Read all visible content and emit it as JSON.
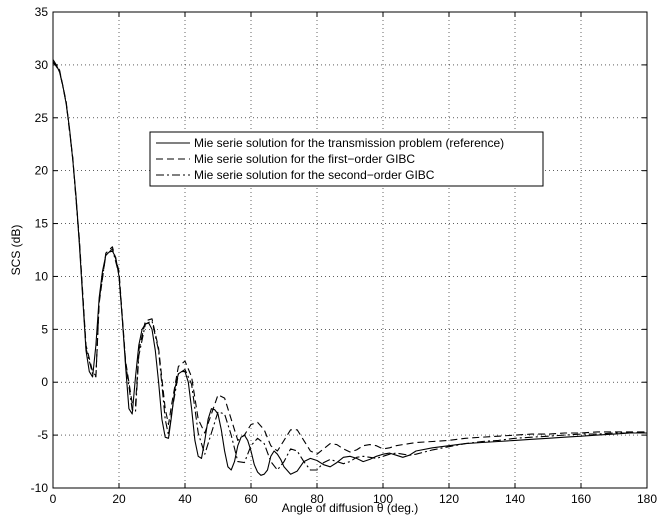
{
  "chart_data": {
    "type": "line",
    "title": "",
    "xlabel": "Angle of diffusion θ (deg.)",
    "ylabel": "SCS (dB)",
    "xlim": [
      0,
      180
    ],
    "ylim": [
      -10,
      35
    ],
    "xticks": [
      0,
      20,
      40,
      60,
      80,
      100,
      120,
      140,
      160,
      180
    ],
    "yticks": [
      -10,
      -5,
      0,
      5,
      10,
      15,
      20,
      25,
      30,
      35
    ],
    "grid": true,
    "legend_position": "center",
    "series": [
      {
        "name": "Mie serie solution for the transmission problem (reference)",
        "line_style": "solid",
        "color": "#000000",
        "x": [
          0,
          1,
          2,
          3,
          4,
          5,
          6,
          7,
          8,
          9,
          10,
          11,
          12,
          13,
          14,
          15,
          16,
          17,
          18,
          19,
          20,
          21,
          22,
          23,
          24,
          25,
          26,
          27,
          28,
          29,
          30,
          31,
          32,
          33,
          34,
          35,
          36,
          37,
          38,
          39,
          40,
          41,
          42,
          43,
          44,
          45,
          46,
          47,
          48,
          49,
          50,
          51,
          52,
          53,
          54,
          55,
          56,
          57,
          58,
          59,
          60,
          61,
          62,
          63,
          64,
          65,
          66,
          67,
          68,
          69,
          70,
          72,
          74,
          76,
          78,
          80,
          82,
          84,
          86,
          88,
          90,
          92,
          94,
          96,
          98,
          100,
          102,
          104,
          106,
          108,
          110,
          115,
          120,
          125,
          130,
          135,
          140,
          145,
          150,
          155,
          160,
          165,
          170,
          175,
          180
        ],
        "y": [
          30.2,
          30.0,
          29.3,
          28.0,
          26.3,
          24.0,
          21.0,
          17.5,
          13.0,
          8.0,
          3.0,
          1.0,
          0.5,
          3.5,
          8.0,
          10.5,
          12.0,
          12.3,
          12.4,
          11.8,
          10.0,
          6.0,
          1.5,
          -2.5,
          -3.0,
          0.5,
          3.5,
          5.0,
          5.5,
          5.6,
          5.0,
          3.0,
          0.0,
          -3.5,
          -5.2,
          -5.3,
          -3.0,
          -0.5,
          0.8,
          1.0,
          1.0,
          0.0,
          -2.5,
          -5.5,
          -7.0,
          -7.2,
          -5.5,
          -3.5,
          -2.5,
          -2.6,
          -3.0,
          -4.5,
          -6.5,
          -8.0,
          -8.3,
          -7.5,
          -6.0,
          -5.2,
          -5.0,
          -5.5,
          -6.5,
          -7.8,
          -8.5,
          -8.8,
          -8.7,
          -8.3,
          -7.0,
          -6.5,
          -6.8,
          -7.3,
          -8.0,
          -8.7,
          -8.4,
          -7.5,
          -7.2,
          -7.4,
          -7.8,
          -8.0,
          -7.6,
          -7.1,
          -7.0,
          -7.2,
          -7.5,
          -7.3,
          -7.0,
          -6.8,
          -6.7,
          -6.9,
          -7.1,
          -6.9,
          -6.5,
          -6.2,
          -6.0,
          -5.8,
          -5.7,
          -5.6,
          -5.5,
          -5.4,
          -5.3,
          -5.2,
          -5.1,
          -5.0,
          -4.9,
          -4.8,
          -4.8
        ]
      },
      {
        "name": "Mie serie solution for the first−order GIBC",
        "line_style": "dashed",
        "color": "#000000",
        "x": [
          0,
          2,
          4,
          6,
          8,
          10,
          12,
          13,
          14,
          16,
          18,
          20,
          22,
          24,
          25,
          26,
          28,
          30,
          32,
          34,
          35,
          36,
          38,
          40,
          42,
          44,
          46,
          48,
          50,
          52,
          54,
          56,
          58,
          60,
          62,
          64,
          66,
          68,
          70,
          72,
          74,
          76,
          78,
          80,
          82,
          84,
          86,
          88,
          90,
          92,
          94,
          96,
          98,
          100,
          102,
          104,
          106,
          108,
          110,
          115,
          120,
          125,
          130,
          135,
          140,
          145,
          150,
          155,
          160,
          165,
          170,
          175,
          180
        ],
        "y": [
          30.5,
          29.5,
          26.5,
          21.2,
          13.5,
          3.5,
          1.0,
          0.6,
          7.5,
          12.2,
          12.8,
          10.5,
          2.0,
          -2.0,
          -2.2,
          3.0,
          5.8,
          6.0,
          3.2,
          -2.5,
          -4.0,
          -2.0,
          1.5,
          2.0,
          0.5,
          -3.5,
          -4.8,
          -3.0,
          -1.2,
          -1.5,
          -3.5,
          -5.5,
          -5.0,
          -4.0,
          -3.8,
          -4.5,
          -6.0,
          -6.5,
          -5.5,
          -4.5,
          -4.5,
          -5.5,
          -6.5,
          -6.8,
          -6.3,
          -5.8,
          -5.9,
          -6.3,
          -6.6,
          -6.4,
          -6.0,
          -5.9,
          -6.0,
          -6.3,
          -6.2,
          -6.0,
          -5.9,
          -5.8,
          -5.7,
          -5.6,
          -5.5,
          -5.3,
          -5.2,
          -5.1,
          -5.0,
          -4.9,
          -4.9,
          -4.8,
          -4.8,
          -4.7,
          -4.7,
          -4.7,
          -4.7
        ]
      },
      {
        "name": "Mie serie solution for the second−order GIBC",
        "line_style": "dashdot",
        "color": "#000000",
        "x": [
          0,
          2,
          4,
          6,
          8,
          10,
          12,
          13,
          14,
          16,
          18,
          20,
          22,
          24,
          25,
          26,
          28,
          30,
          32,
          34,
          35,
          36,
          38,
          40,
          42,
          44,
          46,
          48,
          50,
          52,
          54,
          56,
          58,
          60,
          62,
          64,
          66,
          68,
          70,
          72,
          74,
          76,
          78,
          80,
          82,
          84,
          86,
          88,
          90,
          92,
          94,
          96,
          98,
          100,
          102,
          104,
          106,
          108,
          110,
          115,
          120,
          125,
          130,
          135,
          140,
          145,
          150,
          155,
          160,
          165,
          170,
          175,
          180
        ],
        "y": [
          30.3,
          29.4,
          26.4,
          21.1,
          13.2,
          3.2,
          0.8,
          0.5,
          7.8,
          12.0,
          12.6,
          10.2,
          1.8,
          -2.6,
          -2.8,
          2.5,
          5.5,
          5.8,
          3.0,
          -3.5,
          -5.0,
          -2.8,
          0.8,
          1.2,
          -0.2,
          -4.8,
          -6.8,
          -4.8,
          -2.8,
          -3.0,
          -5.0,
          -7.5,
          -7.6,
          -6.0,
          -5.3,
          -5.8,
          -7.5,
          -8.3,
          -7.5,
          -6.3,
          -6.5,
          -7.5,
          -8.3,
          -8.3,
          -7.6,
          -7.3,
          -7.5,
          -7.7,
          -7.5,
          -7.1,
          -7.0,
          -7.1,
          -7.2,
          -7.0,
          -6.8,
          -6.7,
          -6.8,
          -6.9,
          -6.8,
          -6.4,
          -6.1,
          -5.8,
          -5.6,
          -5.5,
          -5.3,
          -5.2,
          -5.1,
          -5.0,
          -4.9,
          -4.9,
          -4.8,
          -4.8,
          -4.7
        ]
      }
    ]
  }
}
